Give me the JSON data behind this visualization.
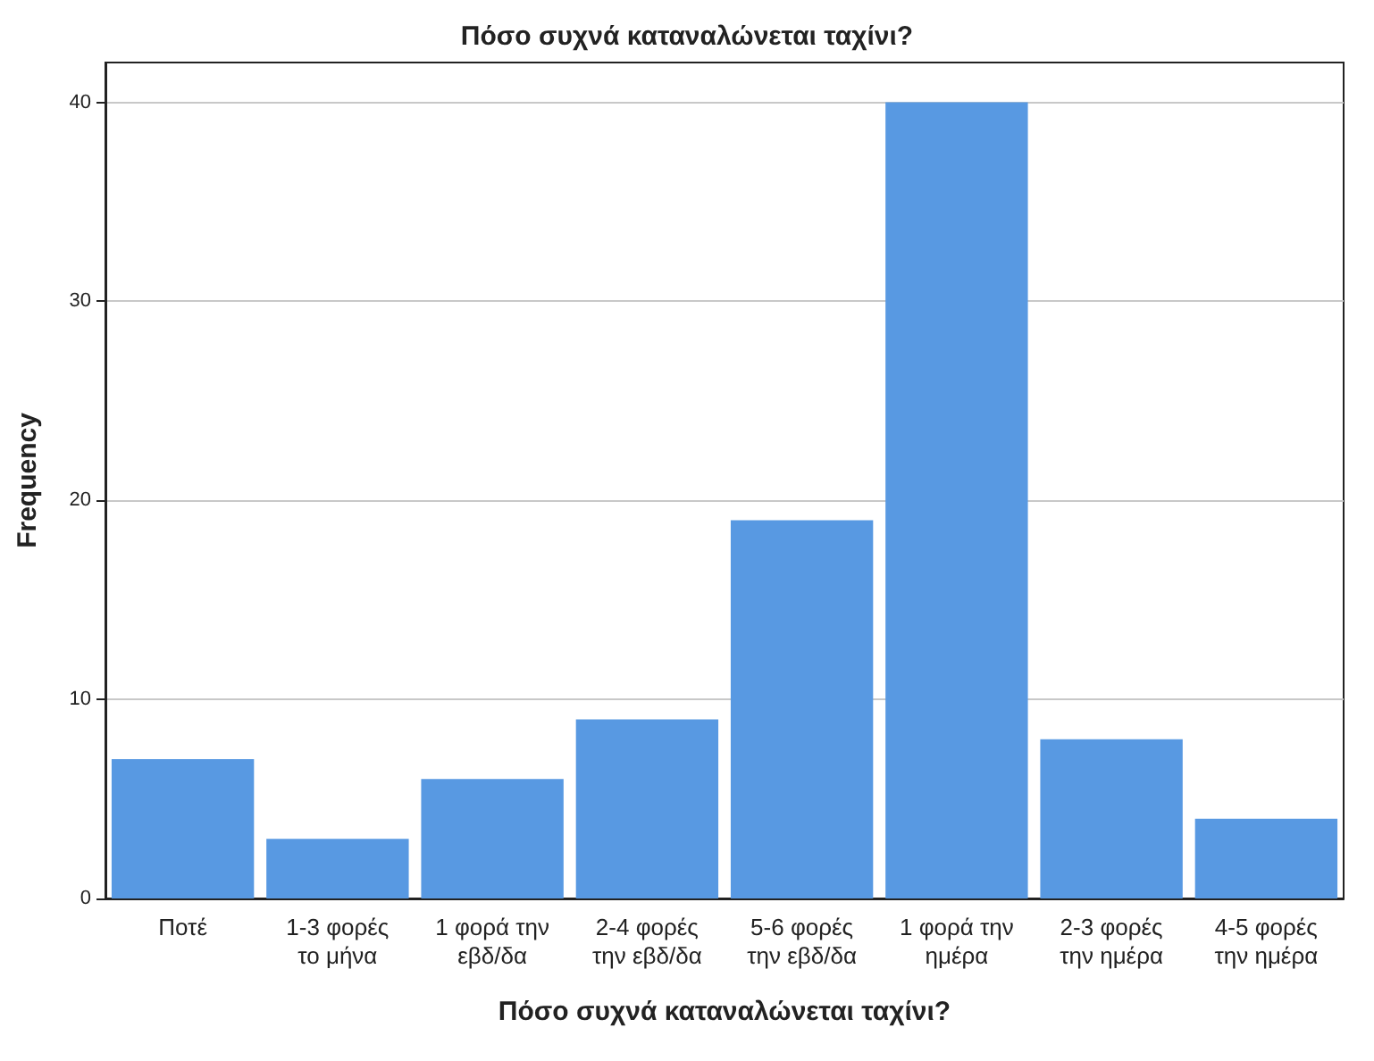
{
  "chart_data": {
    "type": "bar",
    "title": "Πόσο συχνά καταναλώνεται ταχίνι?",
    "xlabel": "Πόσο συχνά καταναλώνεται ταχίνι?",
    "ylabel": "Frequency",
    "categories": [
      "Ποτέ",
      "1-3 φορές\nτο μήνα",
      "1 φορά την\nεβδ/δα",
      "2-4 φορές\nτην εβδ/δα",
      "5-6 φορές\nτην εβδ/δα",
      "1 φορά την\nημέρα",
      "2-3 φορές\nτην ημέρα",
      "4-5 φορές\nτην ημέρα"
    ],
    "values": [
      7,
      3,
      6,
      9,
      19,
      40,
      8,
      4
    ],
    "color": "#5899e2",
    "ylim": [
      0,
      42
    ],
    "yticks": [
      0,
      10,
      20,
      30,
      40
    ],
    "grid": "y"
  }
}
